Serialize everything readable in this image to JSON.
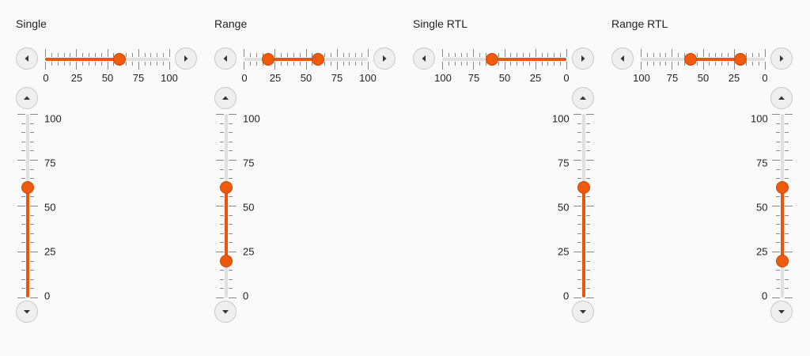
{
  "sections": [
    {
      "id": "single",
      "title": "Single",
      "rtl": false,
      "range": false,
      "horizontal": {
        "value": 60
      },
      "vertical": {
        "value": 60
      }
    },
    {
      "id": "range",
      "title": "Range",
      "rtl": false,
      "range": true,
      "horizontal": {
        "values": [
          20,
          60
        ]
      },
      "vertical": {
        "values": [
          20,
          60
        ]
      }
    },
    {
      "id": "single-rtl",
      "title": "Single RTL",
      "rtl": true,
      "range": false,
      "horizontal": {
        "value": 60
      },
      "vertical": {
        "value": 60
      }
    },
    {
      "id": "range-rtl",
      "title": "Range RTL",
      "rtl": true,
      "range": true,
      "horizontal": {
        "values": [
          20,
          60
        ]
      },
      "vertical": {
        "values": [
          20,
          60
        ]
      }
    }
  ],
  "scale": {
    "min": 0,
    "max": 100,
    "small_step": 5,
    "large_step": 25
  },
  "ltr_tick_labels": [
    "0",
    "25",
    "50",
    "75",
    "100"
  ],
  "rtl_tick_labels": [
    "100",
    "75",
    "50",
    "25",
    "0"
  ],
  "vertical_tick_labels": [
    "100",
    "75",
    "50",
    "25",
    "0"
  ],
  "icons": {
    "decrease_horizontal": "arrow-left-icon",
    "increase_horizontal": "arrow-right-icon",
    "increase_vertical": "arrow-up-icon",
    "decrease_vertical": "arrow-down-icon"
  },
  "colors": {
    "accent": "#e8580c",
    "rail": "#e0e0e0",
    "button_bg": "#efefef"
  }
}
